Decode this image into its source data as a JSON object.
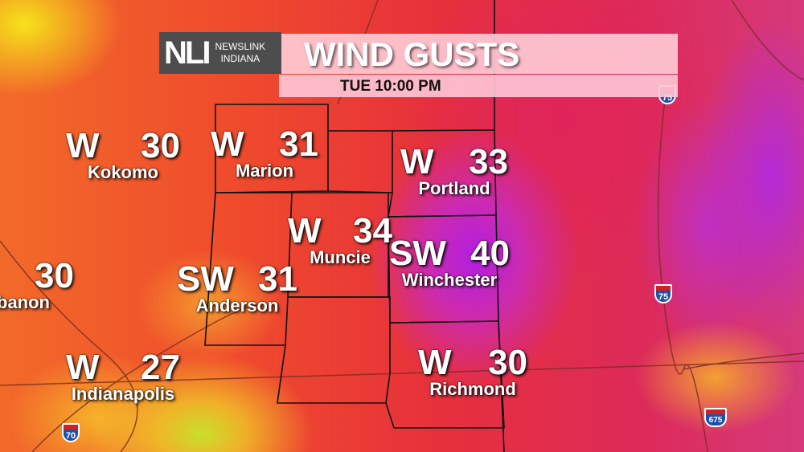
{
  "brand": {
    "logo_mark": "NLI",
    "name_line1": "NEWSLINK",
    "name_line2": "INDIANA"
  },
  "header": {
    "title": "WIND GUSTS",
    "time": "TUE  10:00 PM"
  },
  "cities": [
    {
      "name": "Kokomo",
      "direction": "W",
      "gust": "30"
    },
    {
      "name": "Marion",
      "direction": "W",
      "gust": "31"
    },
    {
      "name": "Portland",
      "direction": "W",
      "gust": "33"
    },
    {
      "name": "Muncie",
      "direction": "W",
      "gust": "34"
    },
    {
      "name": "Winchester",
      "direction": "SW",
      "gust": "40"
    },
    {
      "name": "Anderson",
      "direction": "SW",
      "gust": "31"
    },
    {
      "name": "banon",
      "direction": "",
      "gust": "30"
    },
    {
      "name": "Indianapolis",
      "direction": "W",
      "gust": "27"
    },
    {
      "name": "Richmond",
      "direction": "W",
      "gust": "30"
    }
  ],
  "interstates": [
    "75",
    "75",
    "70",
    "675"
  ],
  "colors": {
    "low": "#f6e21a",
    "mid": "#ef4a2c",
    "high": "#b21fe0"
  }
}
